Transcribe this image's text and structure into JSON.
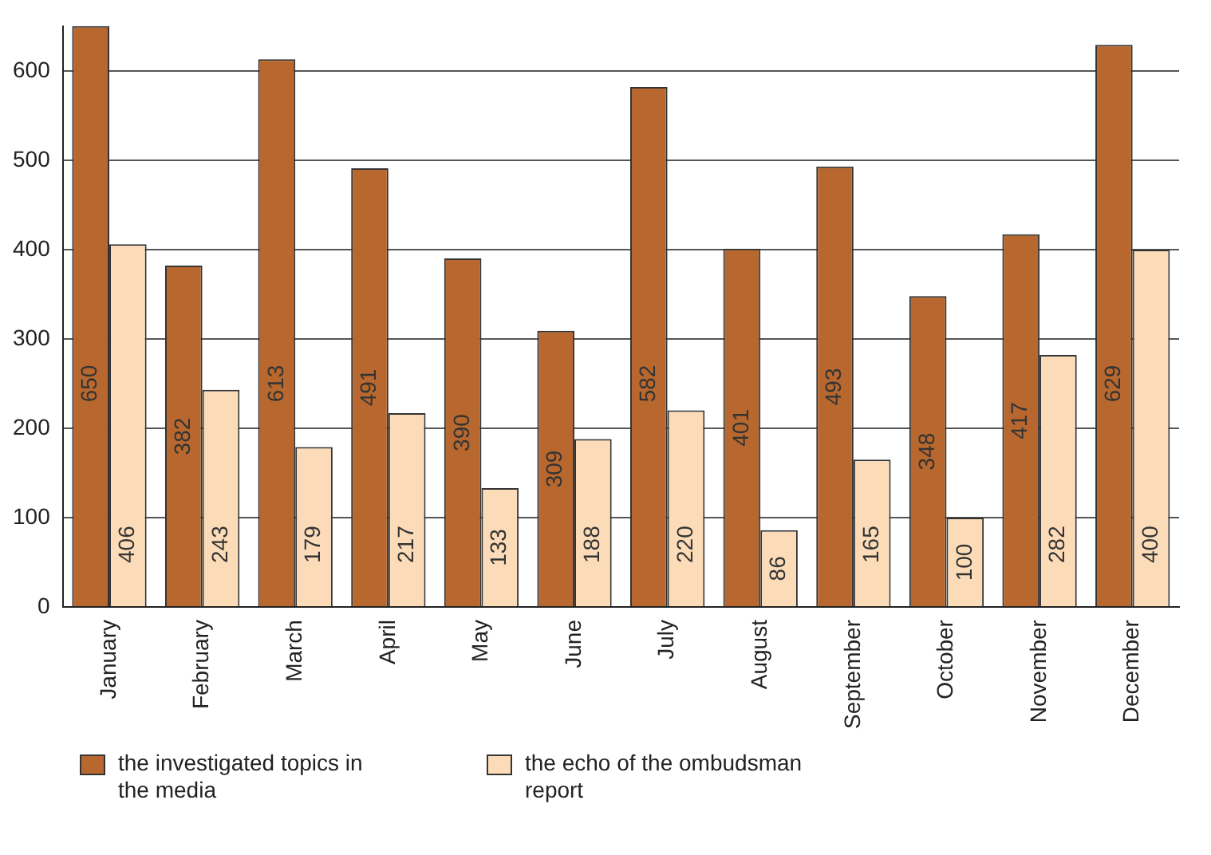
{
  "chart_data": {
    "type": "bar",
    "categories": [
      "January",
      "February",
      "March",
      "April",
      "May",
      "June",
      "July",
      "August",
      "September",
      "October",
      "November",
      "December"
    ],
    "series": [
      {
        "name": "the investigated topics in the media",
        "color": "#b8682e",
        "values": [
          650,
          382,
          613,
          491,
          390,
          309,
          582,
          401,
          493,
          348,
          417,
          629
        ]
      },
      {
        "name": "the echo of the ombudsman report",
        "color": "#fcdcb8",
        "values": [
          406,
          243,
          179,
          217,
          133,
          188,
          220,
          86,
          165,
          100,
          282,
          400
        ]
      }
    ],
    "ylim": [
      0,
      650
    ],
    "yticks": [
      0,
      100,
      200,
      300,
      400,
      500,
      600
    ],
    "grid": "y",
    "legend": "bottom left",
    "data_labels": true
  }
}
